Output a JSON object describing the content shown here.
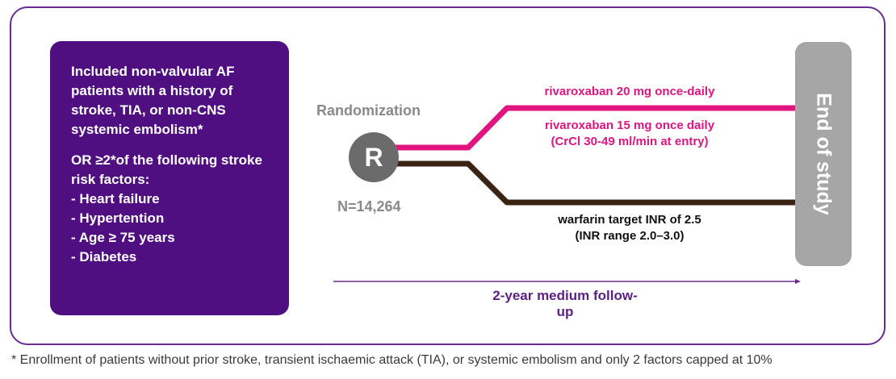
{
  "inclusion": {
    "intro": "Included non-valvular AF patients with a history of stroke, TIA, or non-CNS systemic embolism*",
    "or_heading": "OR ≥2*of the following stroke risk factors:",
    "risk_factors": [
      "- Heart failure",
      "- Hypertention",
      "- Age ≥ 75 years",
      "- Diabetes"
    ]
  },
  "randomization": {
    "label": "Randomization",
    "symbol": "R",
    "n": "N=14,264"
  },
  "arms": {
    "rivaroxaban_20": "rivaroxaban 20 mg once-daily",
    "rivaroxaban_15_line1": "rivaroxaban 15 mg once daily",
    "rivaroxaban_15_line2": "(CrCl 30-49 ml/min at entry)",
    "warfarin_line1": "warfarin target INR of 2.5",
    "warfarin_line2": "(INR range 2.0–3.0)"
  },
  "end_of_study": "End of study",
  "timeline": "2-year medium follow-up",
  "footnote": "* Enrollment of patients without prior stroke, transient ischaemic attack (TIA), or systemic embolism and only 2 factors capped at 10%",
  "colors": {
    "frame": "#6b2c91",
    "box": "#4f0f80",
    "rivaroxaban": "#e0157f",
    "warfarin": "#3b2314",
    "end_box": "#a6a6a6"
  }
}
